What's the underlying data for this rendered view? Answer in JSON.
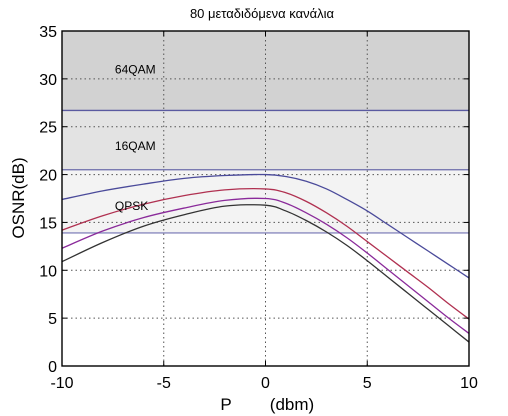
{
  "chart_data": {
    "type": "line",
    "title": "80 μεταδιδόμενα κανάλια",
    "xlabel": "P",
    "xlabel_unit": "(dbm)",
    "ylabel": "OSNR(dB)",
    "xlim": [
      -10,
      10
    ],
    "ylim": [
      0,
      35
    ],
    "xticks": [
      -10,
      -5,
      0,
      5,
      10
    ],
    "yticks": [
      0,
      5,
      10,
      15,
      20,
      25,
      30,
      35
    ],
    "grid": true,
    "bands": [
      {
        "label": "64QAM",
        "from": 26.7,
        "to": 35,
        "color": "#d2d2d2",
        "label_x": -7.4,
        "label_y": 31.0
      },
      {
        "label": "16QAM",
        "from": 20.5,
        "to": 26.7,
        "color": "#e3e3e3",
        "label_x": -7.4,
        "label_y": 23.0
      },
      {
        "label": "QPSK",
        "from": 13.9,
        "to": 20.5,
        "color": "#f3f3f3",
        "label_x": -7.4,
        "label_y": 16.7
      }
    ],
    "thresholds": [
      {
        "value": 26.7,
        "color": "#5a5aa0"
      },
      {
        "value": 20.5,
        "color": "#6b6baa"
      },
      {
        "value": 13.9,
        "color": "#8a8abf"
      }
    ],
    "series": [
      {
        "color": "#4a4a9a",
        "x": [
          -10,
          -8,
          -6,
          -4,
          -2,
          0,
          1,
          2,
          3,
          4,
          5,
          6,
          7,
          8,
          9,
          10
        ],
        "y": [
          17.4,
          18.3,
          19.0,
          19.6,
          19.9,
          20.0,
          19.8,
          19.3,
          18.5,
          17.4,
          16.2,
          14.8,
          13.4,
          12.0,
          10.6,
          9.2
        ]
      },
      {
        "color": "#b03050",
        "x": [
          -10,
          -8,
          -6,
          -4,
          -2,
          0,
          1,
          2,
          3,
          4,
          5,
          6,
          7,
          8,
          9,
          10
        ],
        "y": [
          14.2,
          15.7,
          16.9,
          17.8,
          18.4,
          18.5,
          18.1,
          17.2,
          16.0,
          14.6,
          13.0,
          11.4,
          9.8,
          8.2,
          6.5,
          4.9
        ]
      },
      {
        "color": "#8a2a9a",
        "x": [
          -10,
          -8,
          -6,
          -4,
          -2,
          0,
          1,
          2,
          3,
          4,
          5,
          6,
          7,
          8,
          9,
          10
        ],
        "y": [
          12.3,
          14.1,
          15.5,
          16.5,
          17.3,
          17.5,
          17.0,
          16.0,
          14.8,
          13.4,
          11.8,
          10.1,
          8.4,
          6.7,
          5.0,
          3.4
        ]
      },
      {
        "color": "#333333",
        "x": [
          -10,
          -8,
          -6,
          -4,
          -2,
          0,
          1,
          2,
          3,
          4,
          5,
          6,
          7,
          8,
          9,
          10
        ],
        "y": [
          10.9,
          12.9,
          14.6,
          15.8,
          16.7,
          16.8,
          16.2,
          15.2,
          14.0,
          12.6,
          11.0,
          9.3,
          7.6,
          5.9,
          4.2,
          2.5
        ]
      }
    ]
  }
}
